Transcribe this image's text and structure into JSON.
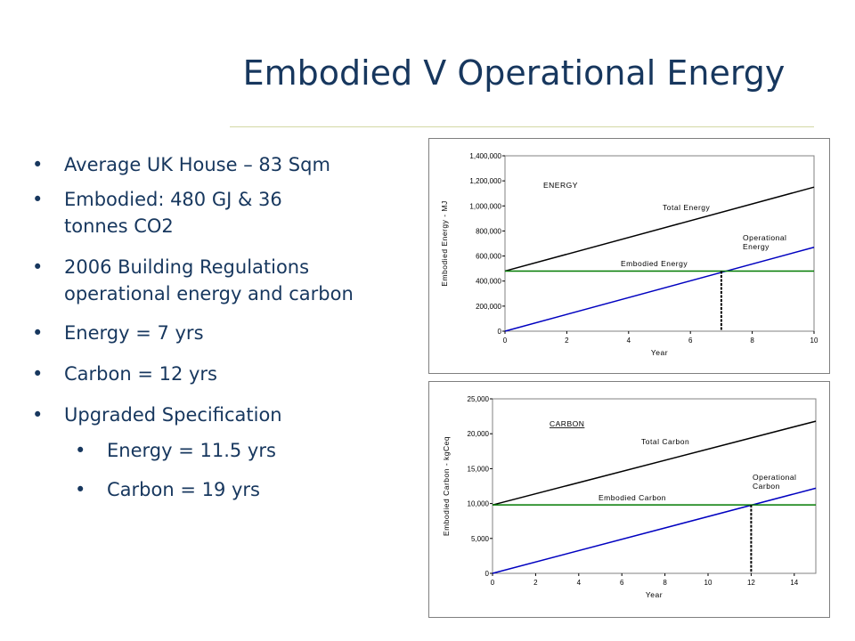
{
  "slide": {
    "title": "Embodied V Operational Energy",
    "bullets": [
      {
        "text": "Average UK House – 83 Sqm",
        "level": 1
      },
      {
        "text": "Embodied: 480 GJ & 36 tonnes CO2",
        "level": 1
      },
      {
        "text": "2006 Building Regulations operational energy and carbon",
        "level": 1
      },
      {
        "text": "Energy = 7 yrs",
        "level": 1
      },
      {
        "text": "Carbon = 12 yrs",
        "level": 1
      },
      {
        "text": "Upgraded Specification",
        "level": 1
      },
      {
        "text": "Energy = 11.5 yrs",
        "level": 2
      },
      {
        "text": "Carbon = 19 yrs",
        "level": 2
      }
    ]
  },
  "chart_data": [
    {
      "type": "line",
      "title": "ENERGY",
      "xlabel": "Year",
      "ylabel": "Embodied Energy - MJ",
      "xlim": [
        0,
        10
      ],
      "ylim": [
        0,
        1400000
      ],
      "x_ticks": [
        "0",
        "2",
        "4",
        "6",
        "8",
        "10"
      ],
      "y_ticks": [
        "0",
        "200,000",
        "400,000",
        "600,000",
        "800,000",
        "1,000,000",
        "1,200,000",
        "1,400,000"
      ],
      "series": [
        {
          "name": "Total Energy",
          "x": [
            0,
            10
          ],
          "values": [
            480000,
            1150000
          ],
          "color": "#000000"
        },
        {
          "name": "Operational Energy",
          "x": [
            0,
            10
          ],
          "values": [
            0,
            670000
          ],
          "color": "#0000c0"
        },
        {
          "name": "Embodied Energy",
          "x": [
            0,
            10
          ],
          "values": [
            480000,
            480000
          ],
          "color": "#007a00"
        }
      ],
      "crossover_year": 7,
      "grid": false,
      "legend": "inline labels"
    },
    {
      "type": "line",
      "title": "CARBON",
      "xlabel": "Year",
      "ylabel": "Embodied Carbon - kgCeq",
      "xlim": [
        0,
        15
      ],
      "ylim": [
        0,
        25000
      ],
      "x_ticks": [
        "0",
        "2",
        "4",
        "6",
        "8",
        "10",
        "12",
        "14"
      ],
      "y_ticks": [
        "0",
        "5,000",
        "10,000",
        "15,000",
        "20,000",
        "25,000"
      ],
      "series": [
        {
          "name": "Total Carbon",
          "x": [
            0,
            15
          ],
          "values": [
            9800,
            21800
          ],
          "color": "#000000"
        },
        {
          "name": "Operational Carbon",
          "x": [
            0,
            15
          ],
          "values": [
            0,
            12200
          ],
          "color": "#0000c0"
        },
        {
          "name": "Embodied Carbon",
          "x": [
            0,
            15
          ],
          "values": [
            9800,
            9800
          ],
          "color": "#007a00"
        }
      ],
      "crossover_year": 12,
      "grid": false,
      "legend": "inline labels"
    }
  ]
}
